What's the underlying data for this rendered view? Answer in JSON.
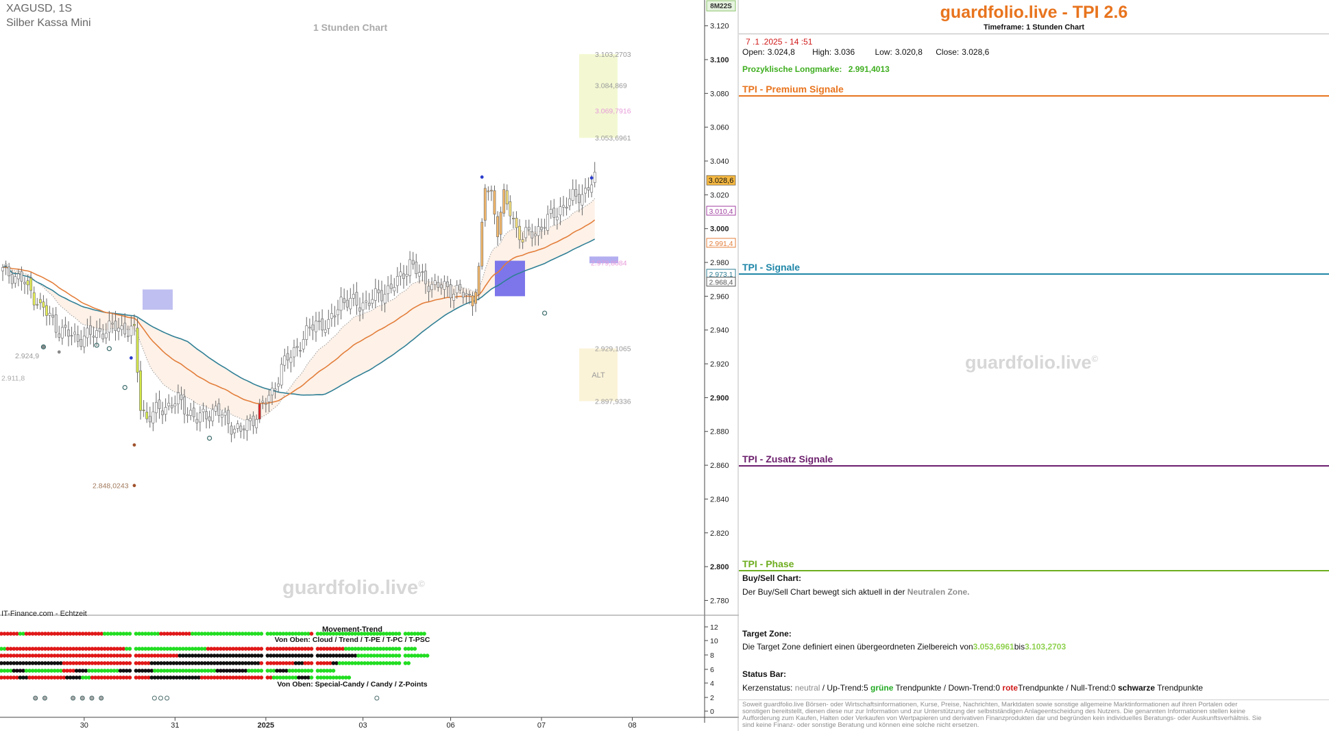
{
  "header": {
    "symbol": "XAGUSD, 1S",
    "name": "Silber Kassa Mini",
    "chart_caption": "1 Stunden Chart",
    "feed": "IT-Finance.com - Echtzeit",
    "axis_badge": "8M22S",
    "watermark": "guardfolio.live",
    "watermark_mark": "©"
  },
  "chart_data": [
    {
      "type": "candlestick",
      "title": "1 Stunden Chart",
      "ylim": [
        2.77,
        3.128
      ],
      "y_ticks": [
        {
          "v": 3.12,
          "label": "3.120",
          "bold": false
        },
        {
          "v": 3.1,
          "label": "3.100",
          "bold": true
        },
        {
          "v": 3.08,
          "label": "3.080",
          "bold": false
        },
        {
          "v": 3.06,
          "label": "3.060",
          "bold": false
        },
        {
          "v": 3.04,
          "label": "3.040",
          "bold": false
        },
        {
          "v": 3.02,
          "label": "3.020",
          "bold": false
        },
        {
          "v": 3.0,
          "label": "3.000",
          "bold": true
        },
        {
          "v": 2.98,
          "label": "2.980",
          "bold": false
        },
        {
          "v": 2.96,
          "label": "2.960",
          "bold": false
        },
        {
          "v": 2.94,
          "label": "2.940",
          "bold": false
        },
        {
          "v": 2.92,
          "label": "2.920",
          "bold": false
        },
        {
          "v": 2.9,
          "label": "2.900",
          "bold": true
        },
        {
          "v": 2.88,
          "label": "2.880",
          "bold": false
        },
        {
          "v": 2.86,
          "label": "2.860",
          "bold": false
        },
        {
          "v": 2.84,
          "label": "2.840",
          "bold": false
        },
        {
          "v": 2.82,
          "label": "2.820",
          "bold": false
        },
        {
          "v": 2.8,
          "label": "2.800",
          "bold": true
        },
        {
          "v": 2.78,
          "label": "2.780",
          "bold": false
        }
      ],
      "x_ticks": [
        {
          "i": 26,
          "label": "30",
          "bold": false
        },
        {
          "i": 55,
          "label": "31",
          "bold": false
        },
        {
          "i": 84,
          "label": "2025",
          "bold": true
        },
        {
          "i": 115,
          "label": "03",
          "bold": false
        },
        {
          "i": 143,
          "label": "06",
          "bold": false
        },
        {
          "i": 172,
          "label": "07",
          "bold": false
        },
        {
          "i": 201,
          "label": "08",
          "bold": false
        }
      ],
      "candle_count": 190,
      "anchors": [
        [
          0,
          2.975
        ],
        [
          6,
          2.97
        ],
        [
          12,
          2.955
        ],
        [
          18,
          2.94
        ],
        [
          24,
          2.935
        ],
        [
          30,
          2.938
        ],
        [
          36,
          2.942
        ],
        [
          40,
          2.94
        ],
        [
          42,
          2.938
        ],
        [
          44,
          2.895
        ],
        [
          46,
          2.888
        ],
        [
          50,
          2.893
        ],
        [
          56,
          2.898
        ],
        [
          62,
          2.887
        ],
        [
          68,
          2.893
        ],
        [
          72,
          2.885
        ],
        [
          76,
          2.88
        ],
        [
          80,
          2.888
        ],
        [
          86,
          2.903
        ],
        [
          89,
          2.918
        ],
        [
          92,
          2.925
        ],
        [
          96,
          2.935
        ],
        [
          100,
          2.945
        ],
        [
          104,
          2.942
        ],
        [
          108,
          2.958
        ],
        [
          114,
          2.955
        ],
        [
          118,
          2.958
        ],
        [
          122,
          2.963
        ],
        [
          126,
          2.968
        ],
        [
          130,
          2.98
        ],
        [
          134,
          2.97
        ],
        [
          138,
          2.966
        ],
        [
          142,
          2.965
        ],
        [
          146,
          2.962
        ],
        [
          150,
          2.958
        ],
        [
          152,
          2.975
        ],
        [
          154,
          3.025
        ],
        [
          156,
          3.02
        ],
        [
          158,
          3.0
        ],
        [
          160,
          3.018
        ],
        [
          162,
          3.01
        ],
        [
          164,
          3.0
        ],
        [
          166,
          2.995
        ],
        [
          170,
          2.998
        ],
        [
          174,
          3.005
        ],
        [
          178,
          3.012
        ],
        [
          182,
          3.018
        ],
        [
          186,
          3.022
        ],
        [
          189,
          3.029
        ]
      ],
      "current": {
        "label": "3.028,6",
        "value": 3.0286
      },
      "markers": [
        {
          "label": "3.010,4",
          "value": 3.0104
        },
        {
          "label": "2.991,4",
          "value": 2.9914
        },
        {
          "label": "2.973,1",
          "value": 2.9731
        },
        {
          "label": "2.968,4",
          "value": 2.9684
        }
      ],
      "target_zone": {
        "top": 3.1032703,
        "bottom": 3.0536961,
        "labels": [
          {
            "label": "3.103,2703",
            "value": 3.1032703
          },
          {
            "label": "3.084,869",
            "value": 3.084869
          },
          {
            "label": "3.069,7916",
            "value": 3.0697916
          },
          {
            "label": "3.053,6961",
            "value": 3.0536961
          }
        ]
      },
      "alt_zone": {
        "label": "ALT",
        "top": 2.9291065,
        "bottom": 2.8979336,
        "labels": [
          {
            "label": "2.929,1065",
            "value": 2.9291065
          },
          {
            "label": "2.897,9336",
            "value": 2.8979336
          }
        ]
      },
      "level_labels": [
        {
          "label": "2.979,8084",
          "value": 2.9798084
        },
        {
          "label": "2.924,9",
          "value": 2.9249
        },
        {
          "label": "2.911,8",
          "value": 2.9118
        },
        {
          "label": "2.848,0243",
          "value": 2.8480243
        }
      ]
    },
    {
      "type": "heatmap",
      "title": "Movement-Trend",
      "subtitle_top": "Von Oben: Cloud / Trend / T-PE / T-PC / T-PSC",
      "subtitle_bottom": "Von Oben: Special-Candy / Candy / Z-Points",
      "y_ticks": [
        "12",
        "10",
        "8",
        "6",
        "4",
        "2",
        "0"
      ],
      "colors": {
        "g": "#22dd22",
        "r": "#e01818",
        "k": "#111111"
      },
      "rows": [
        [
          [
            "r",
            6
          ],
          [
            "g",
            2
          ],
          [
            "r",
            25
          ],
          [
            "g",
            17
          ],
          [
            "r",
            10
          ],
          [
            "g",
            32
          ],
          [
            "g",
            5
          ],
          [
            "r",
            1
          ],
          [
            "g",
            20
          ],
          [
            "g",
            14
          ]
        ],
        [
          [
            "g",
            2
          ],
          [
            "r",
            8
          ],
          [
            "r",
            30
          ],
          [
            "g",
            25
          ],
          [
            "r",
            12
          ],
          [
            "r",
            30
          ],
          [
            "g",
            22
          ]
        ],
        [
          [
            "r",
            40
          ],
          [
            "r",
            12
          ],
          [
            "r",
            4
          ],
          [
            "k",
            4
          ],
          [
            "k",
            36
          ],
          [
            "k",
            12
          ],
          [
            "k",
            3
          ],
          [
            "g",
            22
          ]
        ],
        [
          [
            "k",
            20
          ],
          [
            "r",
            15
          ],
          [
            "r",
            12
          ],
          [
            "k",
            15
          ],
          [
            "k",
            20
          ],
          [
            "r",
            10
          ],
          [
            "k",
            3
          ],
          [
            "r",
            8
          ],
          [
            "k",
            2
          ],
          [
            "g",
            22
          ]
        ],
        [
          [
            "g",
            4
          ],
          [
            "k",
            4
          ],
          [
            "g",
            12
          ],
          [
            "r",
            4
          ],
          [
            "k",
            4
          ],
          [
            "g",
            10
          ],
          [
            "k",
            10
          ],
          [
            "g",
            20
          ],
          [
            "k",
            10
          ],
          [
            "g",
            8
          ],
          [
            "k",
            4
          ],
          [
            "g",
            14
          ]
        ],
        [
          [
            "r",
            6
          ],
          [
            "k",
            3
          ],
          [
            "r",
            12
          ],
          [
            "k",
            5
          ],
          [
            "g",
            3
          ],
          [
            "r",
            18
          ],
          [
            "k",
            16
          ],
          [
            "r",
            22
          ],
          [
            "g",
            8
          ],
          [
            "k",
            4
          ],
          [
            "g",
            12
          ]
        ]
      ],
      "zpoints": [
        10,
        13,
        22,
        25,
        28,
        31,
        48,
        50,
        52,
        119
      ]
    }
  ],
  "panel": {
    "brand": "guardfolio.live - TPI 2.6",
    "timeframe": "Timeframe: 1 Stunden Chart",
    "datetime": "7 .1 .2025  - 14 :51",
    "ohlc": {
      "open_label": "Open:",
      "open": "3.024,8",
      "high_label": "High:",
      "high": "3.036",
      "low_label": "Low:",
      "low": "3.020,8",
      "close_label": "Close:",
      "close": "3.028,6"
    },
    "prozyklisch_label": "Prozyklische Longmarke:",
    "prozyklisch_value": "2.991,4013",
    "sections": {
      "premium": "TPI - Premium Signale",
      "signale": "TPI - Signale",
      "zusatz": "TPI - Zusatz Signale",
      "phase": "TPI - Phase"
    },
    "colors": {
      "premium": "#e8741e",
      "signale": "#1f86a8",
      "zusatz": "#6b1d6b",
      "phase": "#6dad1e"
    },
    "buy_sell_title": "Buy/Sell Chart:",
    "buy_sell_text": "Der Buy/Sell Chart bewegt sich aktuell in der",
    "buy_sell_zone": "Neutralen Zone.",
    "target_title": "Target Zone:",
    "target_text": "Die Target Zone definiert einen übergeordneten Zielbereich von",
    "target_from": "3.053,6961",
    "target_bis": "bis",
    "target_to": "3.103,2703",
    "status_title": "Status Bar:",
    "status": {
      "kerzen_label": "Kerzenstatus:",
      "kerzen_value": "neutral",
      "up_label": "/ Up-Trend:",
      "up_count": "5",
      "gruene": "grüne",
      "tp1": "Trendpunkte",
      "down_label": "/ Down-Trend:",
      "down_count": "0",
      "rote": "rote",
      "tp2": "Trendpunkte",
      "null_label": "/ Null-Trend:",
      "null_count": "0",
      "schwarze": "schwarze",
      "tp3": "Trendpunkte"
    },
    "disclaimer": "Soweit guardfolio.live Börsen- oder Wirtschaftsinformationen, Kurse, Preise, Nachrichten, Marktdaten sowie sonstige allgemeine Marktinformationen auf ihren Portalen oder sonstigen bereitstellt, dienen diese nur zur Information und zur Unterstützung der selbstständigen Anlageentscheidung des Nutzers. Die genannten Informationen stellen keine Aufforderung zum Kaufen, Halten oder Verkaufen von Wertpapieren und derivativen Finanzprodukten dar und begründen kein individuelles Beratungs- oder Auskunftsverhältnis. Sie sind keine Finanz- oder sonstige Beratung und können eine solche nicht ersetzen."
  }
}
